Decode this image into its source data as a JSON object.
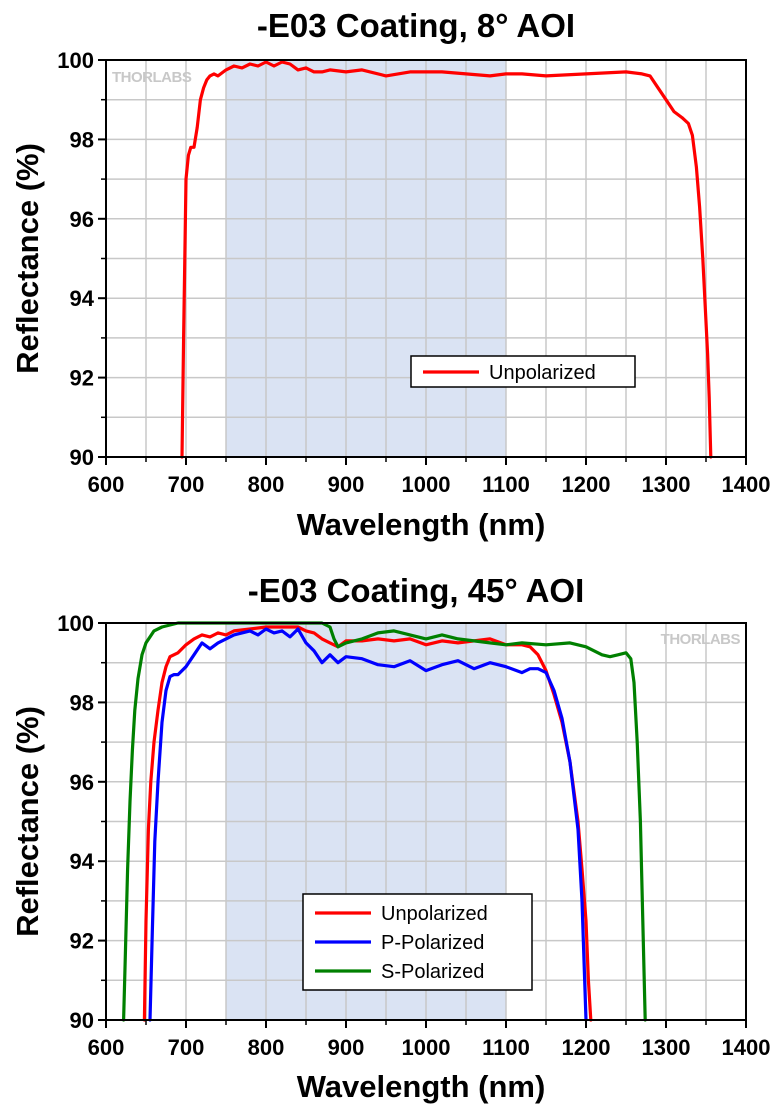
{
  "chart_data": [
    {
      "type": "line",
      "title": "-E03 Coating, 8° AOI",
      "xlabel": "Wavelength (nm)",
      "ylabel": "Reflectance (%)",
      "xlim": [
        600,
        1400
      ],
      "ylim": [
        90,
        100
      ],
      "x_ticks": [
        600,
        700,
        800,
        900,
        1000,
        1100,
        1200,
        1300,
        1400
      ],
      "y_ticks": [
        90,
        92,
        94,
        96,
        98,
        100
      ],
      "grid": true,
      "shaded_region": [
        750,
        1100
      ],
      "watermark": "THORLABS",
      "watermark_position": "top-left",
      "legend_position": "lower-right",
      "series": [
        {
          "name": "Unpolarized",
          "color": "#ff0000",
          "x": [
            695,
            697,
            700,
            703,
            706,
            710,
            714,
            718,
            722,
            726,
            730,
            735,
            740,
            750,
            760,
            770,
            780,
            790,
            800,
            810,
            820,
            830,
            840,
            850,
            860,
            870,
            880,
            900,
            920,
            950,
            980,
            1000,
            1020,
            1050,
            1080,
            1100,
            1120,
            1150,
            1200,
            1250,
            1270,
            1280,
            1290,
            1300,
            1310,
            1320,
            1328,
            1333,
            1338,
            1342,
            1346,
            1349,
            1352,
            1354,
            1356
          ],
          "y": [
            90.0,
            93.0,
            97.0,
            97.6,
            97.8,
            97.8,
            98.3,
            99.0,
            99.3,
            99.5,
            99.6,
            99.65,
            99.6,
            99.75,
            99.85,
            99.8,
            99.9,
            99.85,
            99.95,
            99.85,
            99.95,
            99.9,
            99.75,
            99.8,
            99.7,
            99.7,
            99.75,
            99.7,
            99.75,
            99.6,
            99.7,
            99.7,
            99.7,
            99.65,
            99.6,
            99.65,
            99.65,
            99.6,
            99.65,
            99.7,
            99.65,
            99.6,
            99.3,
            99.0,
            98.7,
            98.55,
            98.4,
            98.1,
            97.3,
            96.3,
            95.0,
            93.8,
            92.6,
            91.5,
            90.0
          ]
        }
      ]
    },
    {
      "type": "line",
      "title": "-E03 Coating, 45° AOI",
      "xlabel": "Wavelength (nm)",
      "ylabel": "Reflectance (%)",
      "xlim": [
        600,
        1400
      ],
      "ylim": [
        90,
        100
      ],
      "x_ticks": [
        600,
        700,
        800,
        900,
        1000,
        1100,
        1200,
        1300,
        1400
      ],
      "y_ticks": [
        90,
        92,
        94,
        96,
        98,
        100
      ],
      "grid": true,
      "shaded_region": [
        750,
        1100
      ],
      "watermark": "THORLABS",
      "watermark_position": "top-right",
      "legend_position": "bottom-center",
      "series": [
        {
          "name": "Unpolarized",
          "color": "#ff0000",
          "x": [
            648,
            650,
            653,
            656,
            660,
            665,
            670,
            675,
            680,
            690,
            700,
            710,
            720,
            730,
            740,
            750,
            760,
            780,
            800,
            820,
            840,
            850,
            860,
            870,
            880,
            890,
            900,
            920,
            940,
            960,
            980,
            1000,
            1020,
            1040,
            1060,
            1080,
            1100,
            1120,
            1130,
            1140,
            1150,
            1160,
            1170,
            1180,
            1190,
            1195,
            1200,
            1203,
            1206
          ],
          "y": [
            90.0,
            92.5,
            94.8,
            96.0,
            97.0,
            97.8,
            98.5,
            98.9,
            99.15,
            99.25,
            99.45,
            99.6,
            99.7,
            99.65,
            99.75,
            99.7,
            99.8,
            99.85,
            99.9,
            99.9,
            99.9,
            99.8,
            99.75,
            99.6,
            99.5,
            99.4,
            99.55,
            99.55,
            99.6,
            99.55,
            99.6,
            99.45,
            99.55,
            99.5,
            99.55,
            99.6,
            99.45,
            99.45,
            99.4,
            99.2,
            98.8,
            98.2,
            97.5,
            96.5,
            95.0,
            93.8,
            92.5,
            91.0,
            90.0
          ]
        },
        {
          "name": "P-Polarized",
          "color": "#0000ff",
          "x": [
            655,
            658,
            661,
            665,
            670,
            675,
            680,
            685,
            690,
            700,
            710,
            720,
            730,
            740,
            750,
            760,
            770,
            780,
            790,
            800,
            810,
            820,
            830,
            840,
            850,
            860,
            870,
            880,
            890,
            900,
            920,
            940,
            960,
            980,
            1000,
            1020,
            1040,
            1060,
            1080,
            1100,
            1120,
            1130,
            1140,
            1150,
            1160,
            1170,
            1180,
            1190,
            1195,
            1200
          ],
          "y": [
            90.0,
            92.3,
            94.5,
            96.0,
            97.5,
            98.3,
            98.65,
            98.7,
            98.7,
            98.9,
            99.2,
            99.5,
            99.35,
            99.5,
            99.6,
            99.7,
            99.75,
            99.8,
            99.7,
            99.85,
            99.75,
            99.8,
            99.65,
            99.85,
            99.5,
            99.3,
            99.0,
            99.2,
            99.0,
            99.15,
            99.1,
            98.95,
            98.9,
            99.05,
            98.8,
            98.95,
            99.05,
            98.85,
            99.0,
            98.9,
            98.75,
            98.85,
            98.85,
            98.75,
            98.3,
            97.6,
            96.5,
            94.8,
            93.0,
            90.0
          ]
        },
        {
          "name": "S-Polarized",
          "color": "#008000",
          "x": [
            622,
            624,
            627,
            630,
            633,
            636,
            640,
            645,
            650,
            660,
            670,
            680,
            690,
            700,
            750,
            800,
            850,
            870,
            880,
            885,
            890,
            900,
            920,
            940,
            960,
            980,
            1000,
            1020,
            1040,
            1060,
            1080,
            1100,
            1120,
            1150,
            1180,
            1200,
            1220,
            1230,
            1240,
            1250,
            1256,
            1260,
            1264,
            1268,
            1271,
            1274
          ],
          "y": [
            90.0,
            91.5,
            93.8,
            95.5,
            96.8,
            97.8,
            98.6,
            99.2,
            99.5,
            99.8,
            99.9,
            99.95,
            100.0,
            100.0,
            100.0,
            100.0,
            100.0,
            100.0,
            99.9,
            99.6,
            99.4,
            99.5,
            99.6,
            99.75,
            99.8,
            99.7,
            99.6,
            99.7,
            99.6,
            99.55,
            99.5,
            99.45,
            99.5,
            99.45,
            99.5,
            99.4,
            99.2,
            99.15,
            99.2,
            99.25,
            99.1,
            98.5,
            97.0,
            95.0,
            92.5,
            90.0
          ]
        }
      ]
    }
  ]
}
